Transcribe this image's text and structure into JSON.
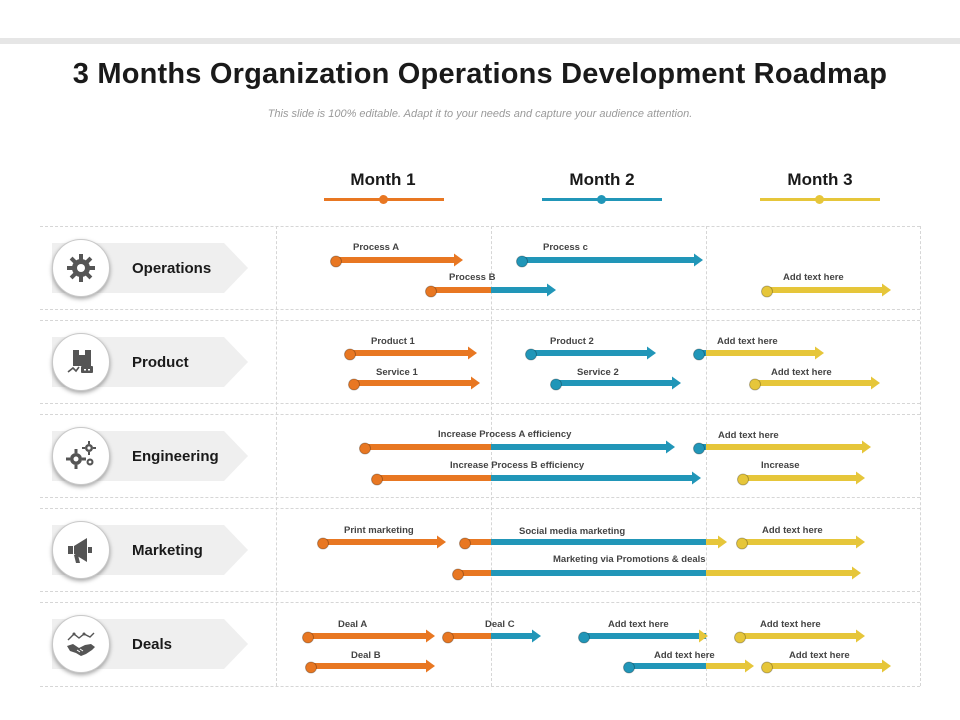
{
  "title": "3 Months Organization Operations Development Roadmap",
  "subtitle": "This slide is 100% editable. Adapt it to your needs and capture your audience attention.",
  "colors": {
    "month1": "#e87722",
    "month2": "#2196b8",
    "month3": "#e6c63a"
  },
  "months": [
    "Month 1",
    "Month 2",
    "Month 3"
  ],
  "rows": [
    {
      "label": "Operations",
      "icon": "gear-icon"
    },
    {
      "label": "Product",
      "icon": "product-box-icon"
    },
    {
      "label": "Engineering",
      "icon": "gears-icon"
    },
    {
      "label": "Marketing",
      "icon": "megaphone-icon"
    },
    {
      "label": "Deals",
      "icon": "handshake-icon"
    }
  ],
  "bars": [
    {
      "row": "Operations",
      "label": "Process A",
      "color_start": "month1"
    },
    {
      "row": "Operations",
      "label": "Process c",
      "color_start": "month2"
    },
    {
      "row": "Operations",
      "label": "Process B",
      "color_start": "month1"
    },
    {
      "row": "Operations",
      "label": "Add text here",
      "color_start": "month3"
    },
    {
      "row": "Product",
      "label": "Product 1",
      "color_start": "month1"
    },
    {
      "row": "Product",
      "label": "Product 2",
      "color_start": "month2"
    },
    {
      "row": "Product",
      "label": "Add text here",
      "color_start": "month2"
    },
    {
      "row": "Product",
      "label": "Service 1",
      "color_start": "month1"
    },
    {
      "row": "Product",
      "label": "Service 2",
      "color_start": "month2"
    },
    {
      "row": "Product",
      "label": "Add text here",
      "color_start": "month3"
    },
    {
      "row": "Engineering",
      "label": "Increase Process A efficiency",
      "color_start": "month1"
    },
    {
      "row": "Engineering",
      "label": "Add text here",
      "color_start": "month2"
    },
    {
      "row": "Engineering",
      "label": "Increase Process B efficiency",
      "color_start": "month1"
    },
    {
      "row": "Engineering",
      "label": "Increase",
      "color_start": "month3"
    },
    {
      "row": "Marketing",
      "label": "Print marketing",
      "color_start": "month1"
    },
    {
      "row": "Marketing",
      "label": "Social media marketing",
      "color_start": "month1"
    },
    {
      "row": "Marketing",
      "label": "Add text here",
      "color_start": "month3"
    },
    {
      "row": "Marketing",
      "label": "Marketing via Promotions & deals",
      "color_start": "month1"
    },
    {
      "row": "Deals",
      "label": "Deal A",
      "color_start": "month1"
    },
    {
      "row": "Deals",
      "label": "Deal C",
      "color_start": "month1"
    },
    {
      "row": "Deals",
      "label": "Add text here",
      "color_start": "month2"
    },
    {
      "row": "Deals",
      "label": "Add text here",
      "color_start": "month3"
    },
    {
      "row": "Deals",
      "label": "Deal B",
      "color_start": "month1"
    },
    {
      "row": "Deals",
      "label": "Add text here",
      "color_start": "month2"
    },
    {
      "row": "Deals",
      "label": "Add text here",
      "color_start": "month3"
    }
  ]
}
